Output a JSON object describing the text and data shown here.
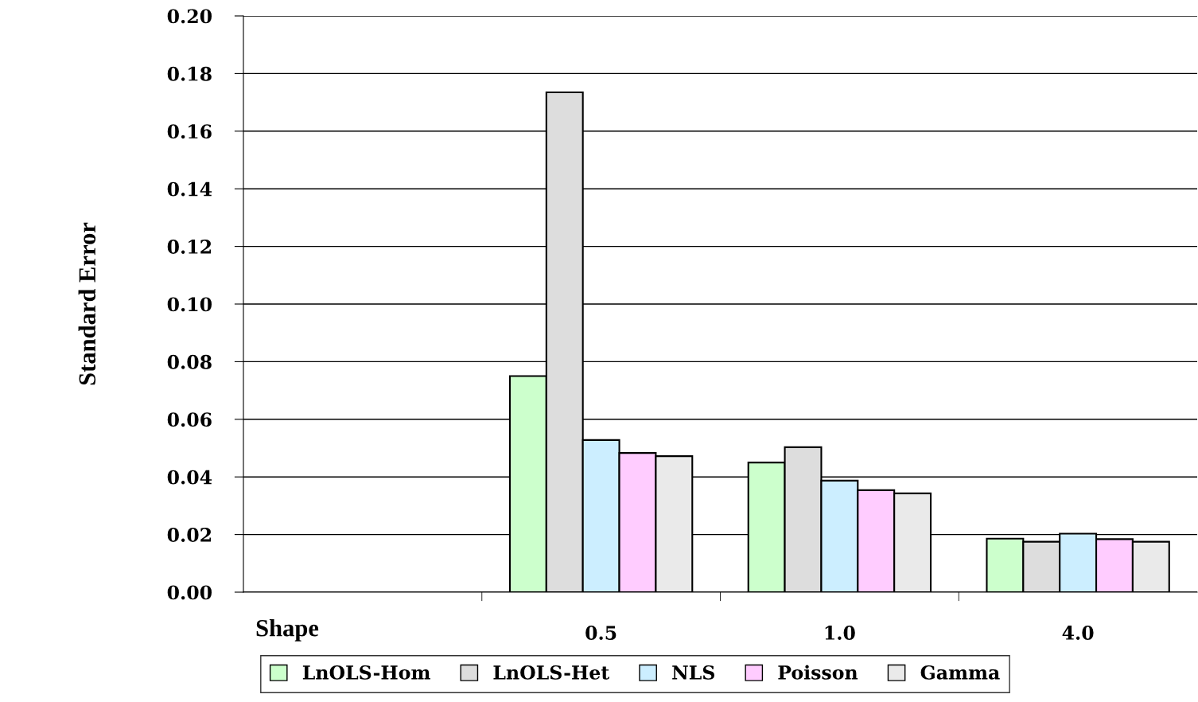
{
  "chart_data": {
    "type": "bar",
    "ylabel": "Standard Error",
    "xlabel": "Shape",
    "categories": [
      null,
      "0.5",
      "1.0",
      "4.0"
    ],
    "series": [
      {
        "name": "LnOLS-Hom",
        "color": "#ccffcc",
        "values": [
          null,
          0.075,
          0.045,
          0.0186
        ]
      },
      {
        "name": "LnOLS-Het",
        "color": "#dddddd",
        "values": [
          null,
          0.1735,
          0.0503,
          0.0175
        ]
      },
      {
        "name": "NLS",
        "color": "#cceeff",
        "values": [
          null,
          0.0528,
          0.0387,
          0.0203
        ]
      },
      {
        "name": "Poisson",
        "color": "#ffccff",
        "values": [
          null,
          0.0483,
          0.0354,
          0.0184
        ]
      },
      {
        "name": "Gamma",
        "color": "#eaeaea",
        "values": [
          null,
          0.0472,
          0.0343,
          0.0175
        ]
      }
    ],
    "ylim": [
      0,
      0.2
    ],
    "yticks": [
      {
        "value": 0,
        "label": "0.00"
      },
      {
        "value": 0.02,
        "label": "0.02"
      },
      {
        "value": 0.04,
        "label": "0.04"
      },
      {
        "value": 0.06,
        "label": "0.06"
      },
      {
        "value": 0.08,
        "label": "0.08"
      },
      {
        "value": 0.1,
        "label": "0.10"
      },
      {
        "value": 0.12,
        "label": "0.12"
      },
      {
        "value": 0.14,
        "label": "0.14"
      },
      {
        "value": 0.16,
        "label": "0.16"
      },
      {
        "value": 0.18,
        "label": "0.18"
      },
      {
        "value": 0.2,
        "label": "0.20"
      }
    ],
    "grid": "y",
    "legend": "bottom"
  }
}
